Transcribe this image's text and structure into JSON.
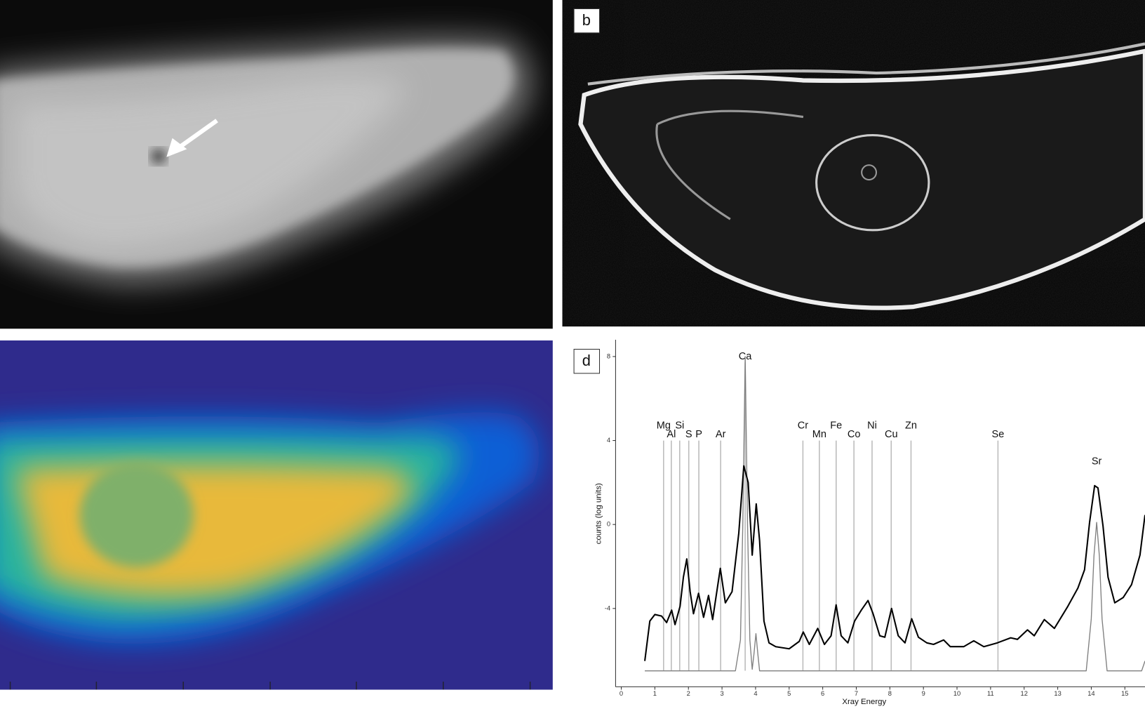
{
  "panel_labels": [
    "b",
    "d"
  ],
  "chart_data": {
    "type": "line",
    "x_label": "Xray Energy",
    "y_label": "counts (log units)",
    "xlim": [
      -0.17,
      15.6
    ],
    "ylim": [
      -7.73,
      8.8
    ],
    "xticks": [
      0,
      1,
      2,
      3,
      4,
      5,
      6,
      7,
      8,
      9,
      10,
      11,
      12,
      13,
      14,
      15
    ],
    "yticks": [
      -4,
      0,
      4,
      8
    ],
    "elements": [
      {
        "name": "Mg",
        "energy": 1.26
      },
      {
        "name": "Al",
        "energy": 1.49
      },
      {
        "name": "Si",
        "energy": 1.74
      },
      {
        "name": "S",
        "energy": 2.01
      },
      {
        "name": "P",
        "energy": 2.31
      },
      {
        "name": "Ar",
        "energy": 2.96
      },
      {
        "name": "Ca",
        "energy": 3.69
      },
      {
        "name": "Cr",
        "energy": 5.41
      },
      {
        "name": "Mn",
        "energy": 5.9
      },
      {
        "name": "Fe",
        "energy": 6.4
      },
      {
        "name": "Co",
        "energy": 6.93
      },
      {
        "name": "Ni",
        "energy": 7.47
      },
      {
        "name": "Cu",
        "energy": 8.04
      },
      {
        "name": "Zn",
        "energy": 8.63
      },
      {
        "name": "Se",
        "energy": 11.22
      },
      {
        "name": "Sr",
        "energy": 14.16
      }
    ],
    "series": [
      {
        "color": "#000000",
        "x": [
          0.7,
          0.85,
          1.0,
          1.2,
          1.35,
          1.5,
          1.6,
          1.75,
          1.85,
          1.95,
          2.05,
          2.15,
          2.3,
          2.45,
          2.6,
          2.72,
          2.95,
          3.1,
          3.3,
          3.5,
          3.65,
          3.78,
          3.9,
          4.02,
          4.12,
          4.25,
          4.4,
          4.6,
          5.0,
          5.3,
          5.42,
          5.6,
          5.85,
          6.05,
          6.25,
          6.4,
          6.55,
          6.75,
          6.95,
          7.15,
          7.35,
          7.5,
          7.7,
          7.85,
          8.05,
          8.25,
          8.45,
          8.65,
          8.85,
          9.1,
          9.3,
          9.6,
          9.8,
          10.2,
          10.5,
          10.8,
          11.2,
          11.6,
          11.8,
          12.1,
          12.3,
          12.6,
          12.9,
          13.3,
          13.6,
          13.8,
          13.95,
          14.1,
          14.2,
          14.35,
          14.5,
          14.7,
          14.95,
          15.2,
          15.45,
          15.6
        ],
        "values": [
          -6.5,
          -4.6,
          -4.29,
          -4.36,
          -4.67,
          -4.08,
          -4.77,
          -3.9,
          -2.5,
          -1.64,
          -3.2,
          -4.25,
          -3.28,
          -4.42,
          -3.38,
          -4.53,
          -2.09,
          -3.73,
          -3.2,
          -0.42,
          2.79,
          2.0,
          -1.46,
          0.98,
          -0.77,
          -4.6,
          -5.64,
          -5.82,
          -5.92,
          -5.57,
          -5.12,
          -5.71,
          -4.95,
          -5.71,
          -5.3,
          -3.83,
          -5.3,
          -5.64,
          -4.6,
          -4.08,
          -3.62,
          -4.25,
          -5.3,
          -5.37,
          -4.0,
          -5.3,
          -5.64,
          -4.49,
          -5.37,
          -5.64,
          -5.71,
          -5.5,
          -5.82,
          -5.82,
          -5.54,
          -5.82,
          -5.64,
          -5.4,
          -5.47,
          -5.02,
          -5.3,
          -4.53,
          -4.95,
          -3.9,
          -3.03,
          -2.16,
          0.1,
          1.85,
          1.74,
          -0.07,
          -2.51,
          -3.73,
          -3.48,
          -2.86,
          -1.46,
          0.45
        ]
      },
      {
        "color": "#7f7f7f",
        "x": [
          0.7,
          3.4,
          3.55,
          3.62,
          3.69,
          3.76,
          3.83,
          3.9,
          3.95,
          4.01,
          4.07,
          4.12,
          13.85,
          14.0,
          14.08,
          14.16,
          14.24,
          14.32,
          14.47,
          15.5,
          15.6
        ],
        "values": [
          -6.97,
          -6.97,
          -5.5,
          0,
          8.0,
          0,
          -5.5,
          -6.9,
          -6.2,
          -5.2,
          -6.2,
          -6.97,
          -6.97,
          -4.5,
          -1.5,
          0.1,
          -1.5,
          -4.5,
          -6.97,
          -6.97,
          -6.5
        ]
      }
    ]
  }
}
